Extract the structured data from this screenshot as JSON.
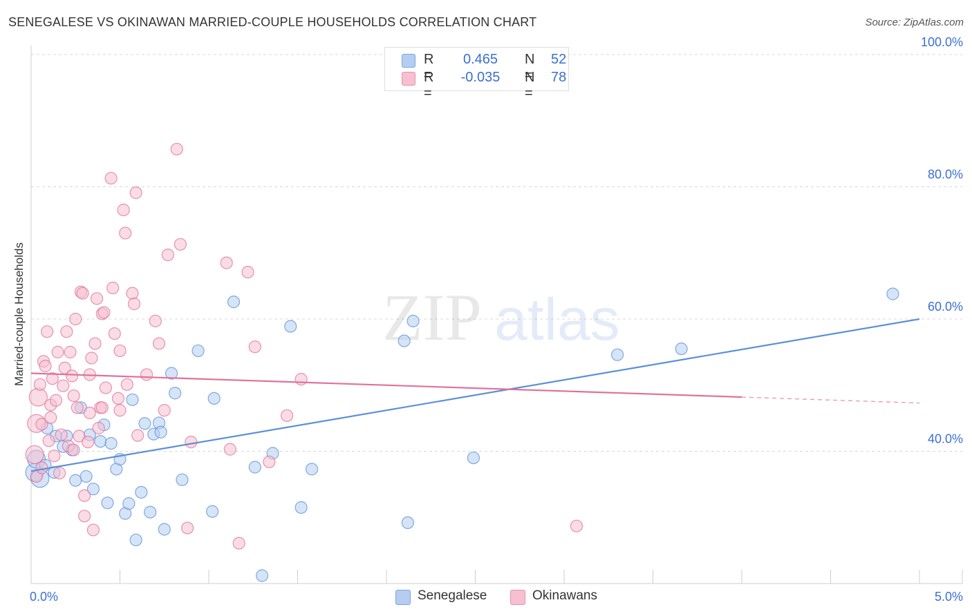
{
  "header": {
    "title": "SENEGALESE VS OKINAWAN MARRIED-COUPLE HOUSEHOLDS CORRELATION CHART",
    "source": "Source: ZipAtlas.com"
  },
  "watermark": {
    "zip": "ZIP",
    "atlas": "atlas"
  },
  "legend": {
    "r_label": "R =",
    "n_label": "N =",
    "rows": [
      {
        "r": "0.465",
        "n": "52",
        "color": "#aac8f0"
      },
      {
        "r": "-0.035",
        "n": "78",
        "color": "#f5b8c8"
      }
    ]
  },
  "chart_data": {
    "type": "scatter",
    "title": "SENEGALESE VS OKINAWAN MARRIED-COUPLE HOUSEHOLDS CORRELATION CHART",
    "ylabel": "Married-couple Households",
    "xlim": [
      0,
      5.0
    ],
    "ylim": [
      20,
      100
    ],
    "x_ticks": [
      "0.0%",
      "5.0%"
    ],
    "y_ticks": [
      {
        "value": 40,
        "label": "40.0%"
      },
      {
        "value": 60,
        "label": "60.0%"
      },
      {
        "value": 80,
        "label": "80.0%"
      },
      {
        "value": 100,
        "label": "100.0%"
      }
    ],
    "grid": true,
    "legend_position": "top-center",
    "series": [
      {
        "name": "Senegalese",
        "color": "#5b8fd9",
        "fill": "#b4cdf0",
        "trend": {
          "x1": 0.0,
          "y1": 37.0,
          "x2": 5.0,
          "y2": 60.0,
          "dash_from": null
        },
        "points": [
          [
            0.02,
            36.8
          ],
          [
            0.03,
            38.8
          ],
          [
            0.05,
            35.9
          ],
          [
            0.08,
            37.9
          ],
          [
            0.09,
            43.5
          ],
          [
            0.13,
            36.8
          ],
          [
            0.14,
            42.3
          ],
          [
            0.18,
            40.7
          ],
          [
            0.2,
            42.3
          ],
          [
            0.23,
            40.2
          ],
          [
            0.25,
            35.6
          ],
          [
            0.28,
            46.6
          ],
          [
            0.31,
            36.2
          ],
          [
            0.33,
            42.5
          ],
          [
            0.35,
            34.3
          ],
          [
            0.39,
            41.5
          ],
          [
            0.41,
            44.0
          ],
          [
            0.43,
            32.2
          ],
          [
            0.45,
            41.2
          ],
          [
            0.48,
            37.3
          ],
          [
            0.5,
            38.8
          ],
          [
            0.53,
            30.6
          ],
          [
            0.55,
            32.1
          ],
          [
            0.57,
            47.8
          ],
          [
            0.59,
            26.6
          ],
          [
            0.62,
            33.8
          ],
          [
            0.64,
            44.2
          ],
          [
            0.67,
            30.8
          ],
          [
            0.69,
            42.6
          ],
          [
            0.72,
            44.3
          ],
          [
            0.73,
            42.9
          ],
          [
            0.75,
            28.2
          ],
          [
            0.79,
            51.8
          ],
          [
            0.81,
            48.8
          ],
          [
            0.85,
            35.7
          ],
          [
            0.94,
            55.2
          ],
          [
            1.02,
            30.9
          ],
          [
            1.03,
            48.0
          ],
          [
            1.14,
            62.6
          ],
          [
            1.26,
            37.6
          ],
          [
            1.3,
            21.2
          ],
          [
            1.36,
            39.7
          ],
          [
            1.46,
            58.9
          ],
          [
            1.52,
            31.5
          ],
          [
            1.58,
            37.3
          ],
          [
            2.1,
            56.7
          ],
          [
            2.12,
            29.2
          ],
          [
            2.15,
            59.7
          ],
          [
            2.49,
            39.0
          ],
          [
            3.3,
            54.6
          ],
          [
            3.66,
            55.5
          ],
          [
            4.85,
            63.8
          ]
        ]
      },
      {
        "name": "Okinawans",
        "color": "#e0709a",
        "fill": "#f6c0d0",
        "trend": {
          "x1": 0.0,
          "y1": 51.8,
          "x2": 5.0,
          "y2": 47.3,
          "dash_from": 4.0
        },
        "points": [
          [
            0.02,
            39.5
          ],
          [
            0.03,
            44.2
          ],
          [
            0.04,
            48.2
          ],
          [
            0.05,
            50.1
          ],
          [
            0.06,
            44.1
          ],
          [
            0.07,
            53.6
          ],
          [
            0.08,
            52.9
          ],
          [
            0.09,
            58.1
          ],
          [
            0.1,
            41.6
          ],
          [
            0.11,
            47.0
          ],
          [
            0.12,
            51.0
          ],
          [
            0.13,
            39.3
          ],
          [
            0.14,
            47.7
          ],
          [
            0.15,
            55.0
          ],
          [
            0.17,
            42.5
          ],
          [
            0.18,
            49.9
          ],
          [
            0.19,
            52.6
          ],
          [
            0.2,
            58.1
          ],
          [
            0.21,
            40.8
          ],
          [
            0.22,
            55.0
          ],
          [
            0.23,
            51.4
          ],
          [
            0.24,
            48.4
          ],
          [
            0.25,
            60.0
          ],
          [
            0.26,
            46.6
          ],
          [
            0.27,
            42.3
          ],
          [
            0.28,
            64.1
          ],
          [
            0.29,
            63.9
          ],
          [
            0.3,
            33.3
          ],
          [
            0.3,
            30.2
          ],
          [
            0.32,
            41.4
          ],
          [
            0.33,
            51.6
          ],
          [
            0.34,
            54.1
          ],
          [
            0.35,
            28.1
          ],
          [
            0.36,
            56.3
          ],
          [
            0.37,
            63.1
          ],
          [
            0.38,
            43.5
          ],
          [
            0.39,
            46.6
          ],
          [
            0.4,
            60.8
          ],
          [
            0.41,
            61.0
          ],
          [
            0.42,
            49.6
          ],
          [
            0.4,
            46.6
          ],
          [
            0.45,
            81.3
          ],
          [
            0.46,
            64.7
          ],
          [
            0.47,
            57.8
          ],
          [
            0.49,
            48.0
          ],
          [
            0.5,
            55.2
          ],
          [
            0.5,
            46.2
          ],
          [
            0.52,
            76.5
          ],
          [
            0.53,
            73.0
          ],
          [
            0.54,
            50.1
          ],
          [
            0.57,
            63.9
          ],
          [
            0.58,
            62.3
          ],
          [
            0.59,
            79.1
          ],
          [
            0.6,
            42.4
          ],
          [
            0.65,
            51.6
          ],
          [
            0.7,
            59.7
          ],
          [
            0.72,
            56.3
          ],
          [
            0.75,
            46.2
          ],
          [
            0.77,
            69.7
          ],
          [
            0.82,
            85.7
          ],
          [
            0.84,
            71.3
          ],
          [
            0.88,
            28.4
          ],
          [
            0.9,
            41.4
          ],
          [
            1.1,
            68.5
          ],
          [
            1.12,
            40.3
          ],
          [
            1.17,
            26.1
          ],
          [
            1.22,
            67.1
          ],
          [
            1.26,
            55.8
          ],
          [
            1.34,
            38.4
          ],
          [
            1.44,
            45.4
          ],
          [
            1.52,
            50.9
          ],
          [
            3.07,
            28.7
          ],
          [
            0.03,
            36.2
          ],
          [
            0.06,
            37.5
          ],
          [
            0.11,
            45.1
          ],
          [
            0.16,
            36.7
          ],
          [
            0.24,
            40.2
          ],
          [
            0.33,
            45.8
          ]
        ]
      }
    ]
  }
}
